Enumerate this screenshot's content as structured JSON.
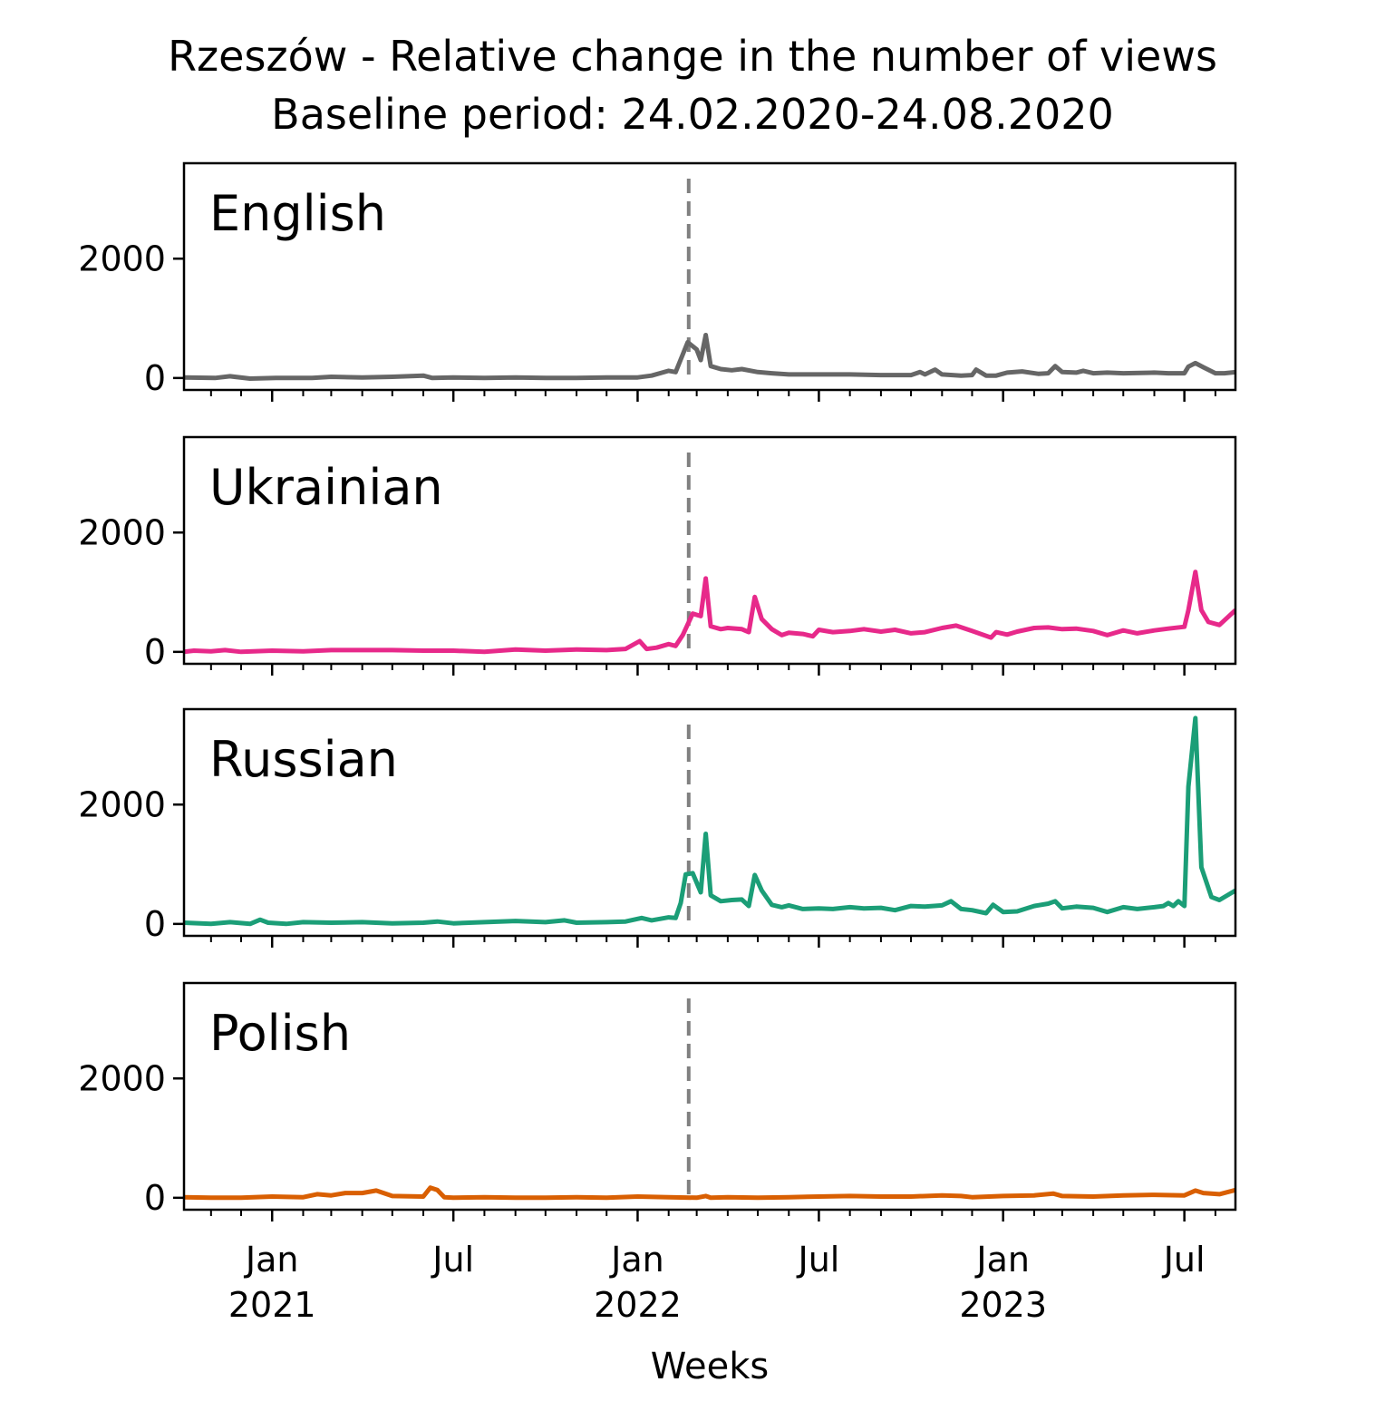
{
  "chart_data": {
    "type": "line",
    "title": "Rzeszów - Relative change in the number of views",
    "subtitle": "Baseline period: 24.02.2020-24.08.2020",
    "xlabel": "Weeks",
    "x_ticks": [
      {
        "date": "2021-01-01",
        "line1": "Jan",
        "line2": "2021"
      },
      {
        "date": "2021-07-01",
        "line1": "Jul",
        "line2": ""
      },
      {
        "date": "2022-01-01",
        "line1": "Jan",
        "line2": "2022"
      },
      {
        "date": "2022-07-01",
        "line1": "Jul",
        "line2": ""
      },
      {
        "date": "2023-01-01",
        "line1": "Jan",
        "line2": "2023"
      },
      {
        "date": "2023-07-01",
        "line1": "Jul",
        "line2": ""
      }
    ],
    "xlim": [
      "2020-10-05",
      "2023-08-21"
    ],
    "ylim": [
      -200,
      3600
    ],
    "y_ticks": [
      0,
      2000
    ],
    "y_tick_labels": [
      "0",
      "2000"
    ],
    "marker_line": {
      "date": "2022-02-21",
      "color": "#808080",
      "style": "dashed"
    },
    "grid": false,
    "panels": [
      {
        "name": "English",
        "color": "#666666",
        "points": [
          [
            "2020-10-05",
            10
          ],
          [
            "2020-11-05",
            0
          ],
          [
            "2020-11-20",
            30
          ],
          [
            "2020-12-10",
            -10
          ],
          [
            "2021-01-05",
            0
          ],
          [
            "2021-02-10",
            0
          ],
          [
            "2021-03-01",
            20
          ],
          [
            "2021-04-01",
            10
          ],
          [
            "2021-05-01",
            20
          ],
          [
            "2021-06-01",
            40
          ],
          [
            "2021-06-10",
            0
          ],
          [
            "2021-07-01",
            10
          ],
          [
            "2021-08-01",
            0
          ],
          [
            "2021-09-01",
            10
          ],
          [
            "2021-10-01",
            0
          ],
          [
            "2021-11-01",
            0
          ],
          [
            "2021-12-01",
            10
          ],
          [
            "2022-01-01",
            10
          ],
          [
            "2022-01-15",
            40
          ],
          [
            "2022-02-01",
            120
          ],
          [
            "2022-02-08",
            100
          ],
          [
            "2022-02-20",
            600
          ],
          [
            "2022-03-01",
            480
          ],
          [
            "2022-03-05",
            300
          ],
          [
            "2022-03-10",
            720
          ],
          [
            "2022-03-15",
            200
          ],
          [
            "2022-03-25",
            150
          ],
          [
            "2022-04-05",
            130
          ],
          [
            "2022-04-15",
            150
          ],
          [
            "2022-05-01",
            100
          ],
          [
            "2022-05-15",
            80
          ],
          [
            "2022-06-01",
            60
          ],
          [
            "2022-07-01",
            60
          ],
          [
            "2022-08-01",
            60
          ],
          [
            "2022-09-01",
            50
          ],
          [
            "2022-10-01",
            50
          ],
          [
            "2022-10-10",
            100
          ],
          [
            "2022-10-15",
            60
          ],
          [
            "2022-10-25",
            140
          ],
          [
            "2022-11-01",
            60
          ],
          [
            "2022-11-20",
            40
          ],
          [
            "2022-12-01",
            50
          ],
          [
            "2022-12-05",
            140
          ],
          [
            "2022-12-15",
            40
          ],
          [
            "2022-12-25",
            40
          ],
          [
            "2023-01-05",
            90
          ],
          [
            "2023-01-20",
            110
          ],
          [
            "2023-02-05",
            70
          ],
          [
            "2023-02-15",
            80
          ],
          [
            "2023-02-22",
            200
          ],
          [
            "2023-03-01",
            100
          ],
          [
            "2023-03-15",
            90
          ],
          [
            "2023-03-22",
            120
          ],
          [
            "2023-04-01",
            80
          ],
          [
            "2023-04-15",
            90
          ],
          [
            "2023-05-01",
            80
          ],
          [
            "2023-06-01",
            90
          ],
          [
            "2023-06-15",
            80
          ],
          [
            "2023-07-01",
            80
          ],
          [
            "2023-07-05",
            190
          ],
          [
            "2023-07-12",
            250
          ],
          [
            "2023-07-20",
            180
          ],
          [
            "2023-08-01",
            80
          ],
          [
            "2023-08-10",
            80
          ],
          [
            "2023-08-21",
            100
          ]
        ]
      },
      {
        "name": "Ukrainian",
        "color": "#e7298a",
        "points": [
          [
            "2020-10-05",
            0
          ],
          [
            "2020-10-15",
            20
          ],
          [
            "2020-11-01",
            10
          ],
          [
            "2020-11-15",
            30
          ],
          [
            "2020-12-01",
            0
          ],
          [
            "2021-01-01",
            20
          ],
          [
            "2021-02-01",
            10
          ],
          [
            "2021-03-01",
            30
          ],
          [
            "2021-04-01",
            30
          ],
          [
            "2021-05-01",
            30
          ],
          [
            "2021-06-01",
            20
          ],
          [
            "2021-07-01",
            20
          ],
          [
            "2021-08-01",
            0
          ],
          [
            "2021-09-01",
            40
          ],
          [
            "2021-10-01",
            20
          ],
          [
            "2021-11-01",
            40
          ],
          [
            "2021-12-01",
            30
          ],
          [
            "2021-12-20",
            50
          ],
          [
            "2022-01-03",
            180
          ],
          [
            "2022-01-10",
            50
          ],
          [
            "2022-01-20",
            70
          ],
          [
            "2022-02-01",
            130
          ],
          [
            "2022-02-08",
            100
          ],
          [
            "2022-02-15",
            280
          ],
          [
            "2022-02-25",
            640
          ],
          [
            "2022-03-05",
            600
          ],
          [
            "2022-03-10",
            1230
          ],
          [
            "2022-03-15",
            430
          ],
          [
            "2022-03-25",
            380
          ],
          [
            "2022-04-01",
            400
          ],
          [
            "2022-04-15",
            380
          ],
          [
            "2022-04-22",
            330
          ],
          [
            "2022-04-28",
            920
          ],
          [
            "2022-05-05",
            550
          ],
          [
            "2022-05-15",
            380
          ],
          [
            "2022-05-25",
            280
          ],
          [
            "2022-06-01",
            320
          ],
          [
            "2022-06-15",
            300
          ],
          [
            "2022-06-25",
            260
          ],
          [
            "2022-07-01",
            370
          ],
          [
            "2022-07-15",
            330
          ],
          [
            "2022-08-01",
            350
          ],
          [
            "2022-08-15",
            380
          ],
          [
            "2022-09-01",
            340
          ],
          [
            "2022-09-15",
            370
          ],
          [
            "2022-10-01",
            310
          ],
          [
            "2022-10-15",
            330
          ],
          [
            "2022-11-01",
            400
          ],
          [
            "2022-11-15",
            440
          ],
          [
            "2022-12-01",
            350
          ],
          [
            "2022-12-20",
            240
          ],
          [
            "2022-12-25",
            330
          ],
          [
            "2023-01-05",
            290
          ],
          [
            "2023-01-15",
            340
          ],
          [
            "2023-02-01",
            400
          ],
          [
            "2023-02-15",
            410
          ],
          [
            "2023-03-01",
            380
          ],
          [
            "2023-03-15",
            390
          ],
          [
            "2023-04-01",
            350
          ],
          [
            "2023-04-15",
            280
          ],
          [
            "2023-05-01",
            360
          ],
          [
            "2023-05-15",
            310
          ],
          [
            "2023-06-01",
            360
          ],
          [
            "2023-06-15",
            390
          ],
          [
            "2023-07-01",
            420
          ],
          [
            "2023-07-05",
            700
          ],
          [
            "2023-07-12",
            1340
          ],
          [
            "2023-07-18",
            700
          ],
          [
            "2023-07-25",
            500
          ],
          [
            "2023-08-05",
            450
          ],
          [
            "2023-08-21",
            700
          ]
        ]
      },
      {
        "name": "Russian",
        "color": "#1b9e77",
        "points": [
          [
            "2020-10-05",
            20
          ],
          [
            "2020-11-01",
            0
          ],
          [
            "2020-11-20",
            30
          ],
          [
            "2020-12-10",
            0
          ],
          [
            "2020-12-20",
            70
          ],
          [
            "2020-12-28",
            20
          ],
          [
            "2021-01-15",
            0
          ],
          [
            "2021-02-01",
            30
          ],
          [
            "2021-03-01",
            20
          ],
          [
            "2021-04-01",
            30
          ],
          [
            "2021-05-01",
            10
          ],
          [
            "2021-06-01",
            20
          ],
          [
            "2021-06-15",
            40
          ],
          [
            "2021-07-01",
            10
          ],
          [
            "2021-08-01",
            30
          ],
          [
            "2021-09-01",
            50
          ],
          [
            "2021-10-01",
            30
          ],
          [
            "2021-10-20",
            60
          ],
          [
            "2021-11-01",
            20
          ],
          [
            "2021-12-01",
            30
          ],
          [
            "2021-12-20",
            40
          ],
          [
            "2022-01-05",
            100
          ],
          [
            "2022-01-15",
            60
          ],
          [
            "2022-02-01",
            110
          ],
          [
            "2022-02-08",
            100
          ],
          [
            "2022-02-13",
            350
          ],
          [
            "2022-02-18",
            830
          ],
          [
            "2022-02-25",
            850
          ],
          [
            "2022-03-05",
            530
          ],
          [
            "2022-03-10",
            1510
          ],
          [
            "2022-03-15",
            480
          ],
          [
            "2022-03-25",
            380
          ],
          [
            "2022-04-05",
            400
          ],
          [
            "2022-04-15",
            410
          ],
          [
            "2022-04-22",
            300
          ],
          [
            "2022-04-28",
            820
          ],
          [
            "2022-05-05",
            560
          ],
          [
            "2022-05-15",
            320
          ],
          [
            "2022-05-25",
            280
          ],
          [
            "2022-06-01",
            310
          ],
          [
            "2022-06-15",
            250
          ],
          [
            "2022-07-01",
            260
          ],
          [
            "2022-07-15",
            250
          ],
          [
            "2022-08-01",
            280
          ],
          [
            "2022-08-15",
            260
          ],
          [
            "2022-09-01",
            270
          ],
          [
            "2022-09-15",
            230
          ],
          [
            "2022-10-01",
            300
          ],
          [
            "2022-10-15",
            290
          ],
          [
            "2022-11-01",
            310
          ],
          [
            "2022-11-10",
            380
          ],
          [
            "2022-11-20",
            250
          ],
          [
            "2022-12-01",
            230
          ],
          [
            "2022-12-15",
            180
          ],
          [
            "2022-12-22",
            320
          ],
          [
            "2023-01-01",
            200
          ],
          [
            "2023-01-15",
            210
          ],
          [
            "2023-02-01",
            300
          ],
          [
            "2023-02-15",
            340
          ],
          [
            "2023-02-22",
            380
          ],
          [
            "2023-03-01",
            260
          ],
          [
            "2023-03-15",
            290
          ],
          [
            "2023-04-01",
            270
          ],
          [
            "2023-04-15",
            200
          ],
          [
            "2023-05-01",
            280
          ],
          [
            "2023-05-15",
            250
          ],
          [
            "2023-06-01",
            280
          ],
          [
            "2023-06-10",
            300
          ],
          [
            "2023-06-15",
            350
          ],
          [
            "2023-06-20",
            300
          ],
          [
            "2023-06-25",
            380
          ],
          [
            "2023-07-01",
            300
          ],
          [
            "2023-07-05",
            2300
          ],
          [
            "2023-07-12",
            3450
          ],
          [
            "2023-07-18",
            950
          ],
          [
            "2023-07-28",
            450
          ],
          [
            "2023-08-05",
            400
          ],
          [
            "2023-08-21",
            560
          ]
        ]
      },
      {
        "name": "Polish",
        "color": "#d95f02",
        "points": [
          [
            "2020-10-05",
            10
          ],
          [
            "2020-11-01",
            0
          ],
          [
            "2020-12-01",
            0
          ],
          [
            "2021-01-01",
            20
          ],
          [
            "2021-02-01",
            10
          ],
          [
            "2021-02-15",
            60
          ],
          [
            "2021-03-01",
            40
          ],
          [
            "2021-03-15",
            80
          ],
          [
            "2021-04-01",
            80
          ],
          [
            "2021-04-15",
            120
          ],
          [
            "2021-05-01",
            30
          ],
          [
            "2021-06-01",
            20
          ],
          [
            "2021-06-08",
            170
          ],
          [
            "2021-06-15",
            130
          ],
          [
            "2021-06-22",
            10
          ],
          [
            "2021-07-01",
            0
          ],
          [
            "2021-08-01",
            10
          ],
          [
            "2021-09-01",
            0
          ],
          [
            "2021-10-01",
            0
          ],
          [
            "2021-11-01",
            10
          ],
          [
            "2021-12-01",
            0
          ],
          [
            "2022-01-01",
            20
          ],
          [
            "2022-02-01",
            10
          ],
          [
            "2022-03-01",
            0
          ],
          [
            "2022-03-10",
            30
          ],
          [
            "2022-03-15",
            0
          ],
          [
            "2022-04-01",
            10
          ],
          [
            "2022-05-01",
            0
          ],
          [
            "2022-06-01",
            10
          ],
          [
            "2022-07-01",
            20
          ],
          [
            "2022-08-01",
            30
          ],
          [
            "2022-09-01",
            20
          ],
          [
            "2022-10-01",
            20
          ],
          [
            "2022-11-01",
            40
          ],
          [
            "2022-11-20",
            30
          ],
          [
            "2022-12-01",
            10
          ],
          [
            "2023-01-01",
            30
          ],
          [
            "2023-02-01",
            40
          ],
          [
            "2023-02-20",
            70
          ],
          [
            "2023-03-01",
            30
          ],
          [
            "2023-04-01",
            20
          ],
          [
            "2023-05-01",
            40
          ],
          [
            "2023-06-01",
            50
          ],
          [
            "2023-07-01",
            40
          ],
          [
            "2023-07-12",
            120
          ],
          [
            "2023-07-20",
            80
          ],
          [
            "2023-08-05",
            60
          ],
          [
            "2023-08-21",
            130
          ]
        ]
      }
    ]
  }
}
